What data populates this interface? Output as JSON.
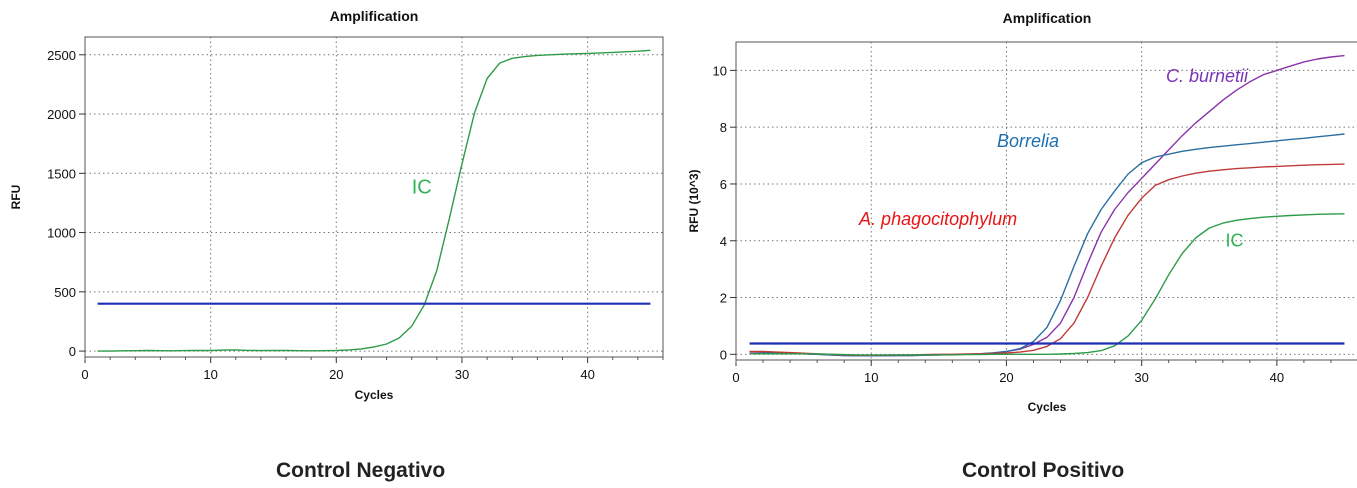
{
  "captions": {
    "left": "Control Negativo",
    "right": "Control Positivo"
  },
  "chart_data": [
    {
      "type": "line",
      "title": "Amplification",
      "xlabel": "Cycles",
      "ylabel": "RFU",
      "xlim": [
        0,
        46
      ],
      "ylim": [
        -50,
        2650
      ],
      "xticks": [
        0,
        10,
        20,
        30,
        40
      ],
      "yticks": [
        0,
        500,
        1000,
        1500,
        2000,
        2500
      ],
      "ytick_labels": [
        "0",
        "500",
        "1000",
        "1500",
        "2000",
        "2500"
      ],
      "grid": true,
      "threshold": {
        "y": 400,
        "x": [
          1,
          45
        ],
        "color": "#1f2fb5"
      },
      "series": [
        {
          "name": "IC",
          "color": "#2e9b4a",
          "label_color": "#2fb356",
          "label_at": [
            26,
            1330
          ],
          "x": [
            1,
            2,
            3,
            4,
            5,
            6,
            7,
            8,
            9,
            10,
            11,
            12,
            13,
            14,
            15,
            16,
            17,
            18,
            19,
            20,
            21,
            22,
            23,
            24,
            25,
            26,
            27,
            28,
            29,
            30,
            31,
            32,
            33,
            34,
            35,
            36,
            37,
            38,
            39,
            40,
            41,
            42,
            43,
            44,
            45
          ],
          "y": [
            0,
            0,
            2,
            3,
            5,
            3,
            2,
            4,
            6,
            5,
            8,
            10,
            6,
            4,
            6,
            5,
            3,
            2,
            3,
            5,
            10,
            18,
            35,
            60,
            110,
            210,
            390,
            680,
            1120,
            1580,
            2010,
            2300,
            2430,
            2470,
            2485,
            2495,
            2500,
            2505,
            2508,
            2512,
            2516,
            2520,
            2525,
            2530,
            2538
          ]
        }
      ]
    },
    {
      "type": "line",
      "title": "Amplification",
      "xlabel": "Cycles",
      "ylabel": "RFU (10^3)",
      "xlim": [
        0,
        46
      ],
      "ylim": [
        -0.2,
        11.0
      ],
      "xticks": [
        0,
        10,
        20,
        30,
        40
      ],
      "yticks": [
        0,
        2,
        4,
        6,
        8,
        10
      ],
      "ytick_labels": [
        "0",
        "2",
        "4",
        "6",
        "8",
        "10"
      ],
      "grid": true,
      "threshold": {
        "y": 0.38,
        "x": [
          1,
          45
        ],
        "color": "#1f2fb5"
      },
      "series": [
        {
          "name": "C. burnetii",
          "color": "#8a34a8",
          "label_color": "#7a35b5",
          "label_at": [
            31.8,
            9.6
          ],
          "x": [
            1,
            2,
            3,
            4,
            5,
            6,
            7,
            8,
            9,
            10,
            11,
            12,
            13,
            14,
            15,
            16,
            17,
            18,
            19,
            20,
            21,
            22,
            23,
            24,
            25,
            26,
            27,
            28,
            29,
            30,
            31,
            32,
            33,
            34,
            35,
            36,
            37,
            38,
            39,
            40,
            41,
            42,
            43,
            44,
            45
          ],
          "y": [
            0.08,
            0.08,
            0.06,
            0.04,
            0.02,
            0.0,
            -0.02,
            -0.04,
            -0.05,
            -0.05,
            -0.05,
            -0.04,
            -0.04,
            -0.03,
            -0.02,
            -0.01,
            0.0,
            0.02,
            0.05,
            0.1,
            0.18,
            0.35,
            0.6,
            1.1,
            2.0,
            3.2,
            4.3,
            5.1,
            5.7,
            6.2,
            6.7,
            7.2,
            7.7,
            8.15,
            8.55,
            8.95,
            9.3,
            9.6,
            9.85,
            10.0,
            10.15,
            10.3,
            10.4,
            10.47,
            10.52
          ]
        },
        {
          "name": "Borrelia",
          "color": "#2a6fa0",
          "label_color": "#1f6fb0",
          "label_at": [
            19.3,
            7.3
          ],
          "x": [
            1,
            2,
            3,
            4,
            5,
            6,
            7,
            8,
            9,
            10,
            11,
            12,
            13,
            14,
            15,
            16,
            17,
            18,
            19,
            20,
            21,
            22,
            23,
            24,
            25,
            26,
            27,
            28,
            29,
            30,
            31,
            32,
            33,
            34,
            35,
            36,
            37,
            38,
            39,
            40,
            41,
            42,
            43,
            44,
            45
          ],
          "y": [
            0.02,
            0.04,
            0.05,
            0.04,
            0.02,
            0.0,
            -0.02,
            -0.04,
            -0.05,
            -0.05,
            -0.05,
            -0.04,
            -0.04,
            -0.03,
            -0.02,
            -0.01,
            0.0,
            0.02,
            0.05,
            0.1,
            0.2,
            0.45,
            0.95,
            1.9,
            3.1,
            4.25,
            5.1,
            5.75,
            6.35,
            6.75,
            6.95,
            7.05,
            7.15,
            7.22,
            7.28,
            7.33,
            7.38,
            7.42,
            7.47,
            7.52,
            7.57,
            7.61,
            7.66,
            7.71,
            7.76
          ]
        },
        {
          "name": "A. phagocitophylum",
          "color": "#c03a3a",
          "label_color": "#e81515",
          "label_at": [
            9.1,
            4.55
          ],
          "x": [
            1,
            2,
            3,
            4,
            5,
            6,
            7,
            8,
            9,
            10,
            11,
            12,
            13,
            14,
            15,
            16,
            17,
            18,
            19,
            20,
            21,
            22,
            23,
            24,
            25,
            26,
            27,
            28,
            29,
            30,
            31,
            32,
            33,
            34,
            35,
            36,
            37,
            38,
            39,
            40,
            41,
            42,
            43,
            44,
            45
          ],
          "y": [
            0.1,
            0.1,
            0.08,
            0.06,
            0.04,
            0.02,
            0.0,
            -0.02,
            -0.03,
            -0.03,
            -0.03,
            -0.02,
            -0.02,
            -0.01,
            0.0,
            0.0,
            0.01,
            0.02,
            0.03,
            0.05,
            0.08,
            0.14,
            0.28,
            0.55,
            1.1,
            2.0,
            3.1,
            4.1,
            4.9,
            5.5,
            5.95,
            6.15,
            6.28,
            6.38,
            6.45,
            6.5,
            6.54,
            6.57,
            6.6,
            6.62,
            6.64,
            6.66,
            6.68,
            6.69,
            6.7
          ]
        },
        {
          "name": "IC",
          "color": "#2e9b4a",
          "label_color": "#2fb356",
          "label_at": [
            36.2,
            3.8
          ],
          "x": [
            1,
            2,
            3,
            4,
            5,
            6,
            7,
            8,
            9,
            10,
            11,
            12,
            13,
            14,
            15,
            16,
            17,
            18,
            19,
            20,
            21,
            22,
            23,
            24,
            25,
            26,
            27,
            28,
            29,
            30,
            31,
            32,
            33,
            34,
            35,
            36,
            37,
            38,
            39,
            40,
            41,
            42,
            43,
            44,
            45
          ],
          "y": [
            0.02,
            0.02,
            0.02,
            0.02,
            0.02,
            0.01,
            0.0,
            -0.01,
            -0.02,
            -0.02,
            -0.02,
            -0.02,
            -0.02,
            -0.02,
            -0.02,
            -0.02,
            -0.01,
            -0.01,
            0.0,
            0.0,
            0.0,
            0.0,
            0.0,
            0.01,
            0.03,
            0.06,
            0.13,
            0.3,
            0.65,
            1.2,
            1.95,
            2.8,
            3.55,
            4.1,
            4.45,
            4.62,
            4.72,
            4.78,
            4.83,
            4.86,
            4.89,
            4.91,
            4.93,
            4.94,
            4.95
          ]
        }
      ]
    }
  ]
}
